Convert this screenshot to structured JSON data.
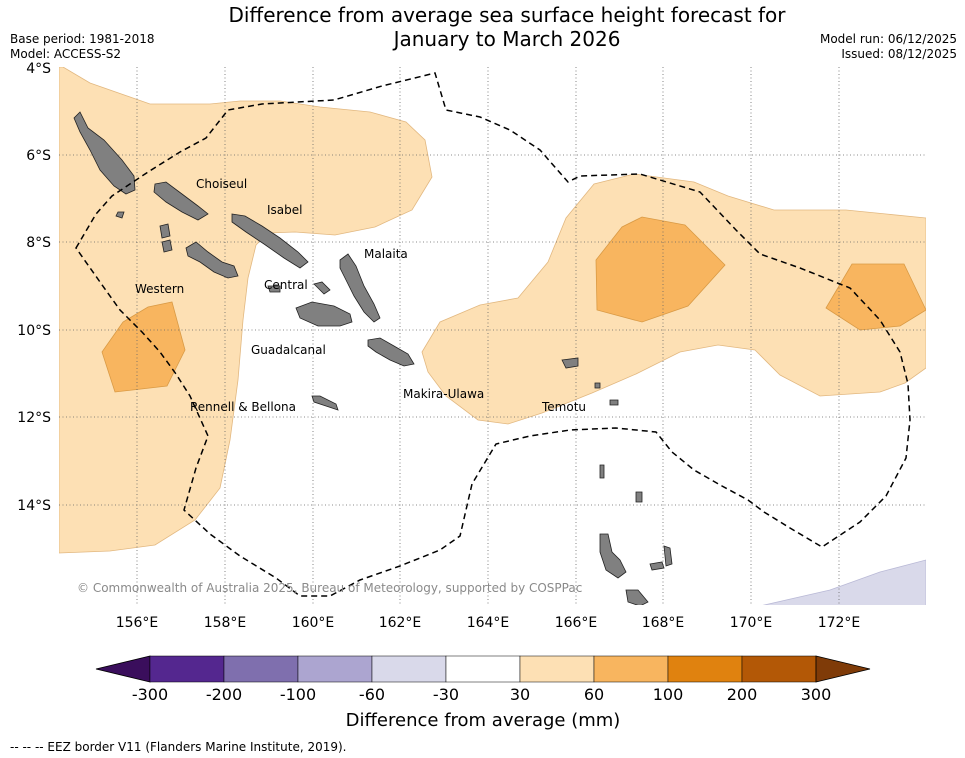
{
  "title_line1": "Difference from average sea surface height forecast for",
  "title_line2": "January to March 2026",
  "meta_left": {
    "base_period": "Base period: 1981-2018",
    "model": "Model: ACCESS-S2"
  },
  "meta_right": {
    "model_run": "Model run: 06/12/2025",
    "issued": "Issued: 08/12/2025"
  },
  "lat_ticks": [
    "4°S",
    "6°S",
    "8°S",
    "10°S",
    "12°S",
    "14°S"
  ],
  "lon_ticks": [
    "156°E",
    "158°E",
    "160°E",
    "162°E",
    "164°E",
    "166°E",
    "168°E",
    "170°E",
    "172°E"
  ],
  "regions": {
    "choiseul": "Choiseul",
    "isabel": "Isabel",
    "malaita": "Malaita",
    "western": "Western",
    "central": "Central",
    "guadalcanal": "Guadalcanal",
    "makira": "Makira-Ulawa",
    "rennell": "Rennell & Bellona",
    "temotu": "Temotu"
  },
  "credit": "© Commonwealth of Australia 2025, Bureau of Meteorology, supported by COSPPac",
  "colorbar": {
    "title": "Difference from average (mm)",
    "ticks": [
      "-300",
      "-200",
      "-100",
      "-60",
      "-30",
      "30",
      "60",
      "100",
      "200",
      "300"
    ],
    "colors": [
      "#3a0e5c",
      "#54278f",
      "#7f6fae",
      "#aca5d0",
      "#d9d9ea",
      "#ffffff",
      "#fde0b4",
      "#f8b55f",
      "#e0820f",
      "#b35806",
      "#7f3b08"
    ]
  },
  "footer": "--  --  -- EEZ border V11 (Flanders Marine Institute, 2019)."
}
